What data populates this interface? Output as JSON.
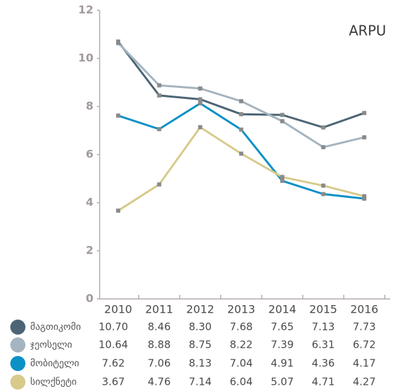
{
  "chart_data": {
    "type": "line",
    "title": "ARPU",
    "categories": [
      "2010",
      "2011",
      "2012",
      "2013",
      "2014",
      "2015",
      "2016"
    ],
    "ylim": [
      0,
      12
    ],
    "yticks": [
      0,
      2,
      4,
      6,
      8,
      10,
      12
    ],
    "series": [
      {
        "name": "მაგთიკომი",
        "color": "#4b6575",
        "values": [
          10.7,
          8.46,
          8.3,
          7.68,
          7.65,
          7.13,
          7.73
        ],
        "value_labels": [
          "10.70",
          "8.46",
          "8.30",
          "7.68",
          "7.65",
          "7.13",
          "7.73"
        ]
      },
      {
        "name": "ჯეოსელი",
        "color": "#a4b4c0",
        "values": [
          10.64,
          8.88,
          8.75,
          8.22,
          7.39,
          6.31,
          6.72
        ],
        "value_labels": [
          "10.64",
          "8.88",
          "8.75",
          "8.22",
          "7.39",
          "6.31",
          "6.72"
        ]
      },
      {
        "name": "მობიტელი",
        "color": "#0b91c6",
        "values": [
          7.62,
          7.06,
          8.13,
          7.04,
          4.91,
          4.36,
          4.17
        ],
        "value_labels": [
          "7.62",
          "7.06",
          "8.13",
          "7.04",
          "4.91",
          "4.36",
          "4.17"
        ]
      },
      {
        "name": "სილქნეტი",
        "color": "#d7ca8b",
        "values": [
          3.67,
          4.76,
          7.14,
          6.04,
          5.07,
          4.71,
          4.27
        ],
        "value_labels": [
          "3.67",
          "4.76",
          "7.14",
          "6.04",
          "5.07",
          "4.71",
          "4.27"
        ]
      }
    ]
  }
}
